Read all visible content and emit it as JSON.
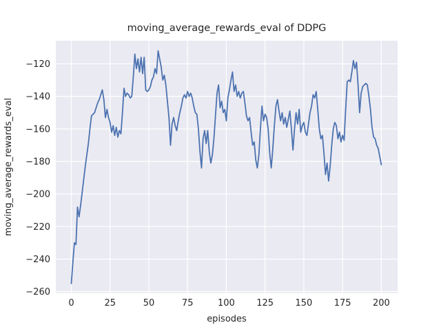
{
  "title": "moving_average_rewards_eval of DDPG",
  "colors": {
    "line": "#4c72b0",
    "plot_background": "#eaeaf2",
    "grid": "#ffffff",
    "text": "#262626",
    "figure_background": "#ffffff"
  },
  "chart_data": {
    "type": "line",
    "title": "moving_average_rewards_eval of DDPG",
    "xlabel": "episodes",
    "ylabel": "moving_average_rewards_eval",
    "xlim": [
      -10,
      210.5
    ],
    "ylim": [
      -261,
      -105.8
    ],
    "xticks": [
      0,
      25,
      50,
      75,
      100,
      125,
      150,
      175,
      200
    ],
    "yticks": [
      -260,
      -240,
      -220,
      -200,
      -180,
      -160,
      -140,
      -120
    ],
    "grid": true,
    "legend_position": "none",
    "x_start": 0,
    "x_step": 1,
    "series": [
      {
        "name": "moving_average_rewards_eval",
        "color": "#4c72b0",
        "values": [
          -255,
          -242,
          -230,
          -231,
          -208,
          -214,
          -207,
          -199,
          -191,
          -183,
          -176,
          -169,
          -160,
          -152,
          -151,
          -150,
          -147,
          -144,
          -142,
          -139,
          -136,
          -142,
          -153,
          -148,
          -153,
          -156,
          -162,
          -158,
          -164,
          -159,
          -165,
          -161,
          -163,
          -150,
          -135,
          -140,
          -138,
          -139,
          -141,
          -140,
          -128,
          -114,
          -123,
          -117,
          -125,
          -116,
          -126,
          -116,
          -136,
          -137,
          -136,
          -134,
          -130,
          -128,
          -123,
          -126,
          -112,
          -117,
          -122,
          -130,
          -127,
          -133,
          -143,
          -153,
          -170,
          -157,
          -153,
          -158,
          -161,
          -155,
          -150,
          -146,
          -141,
          -139,
          -141,
          -137,
          -140,
          -138,
          -141,
          -146,
          -150,
          -151,
          -160,
          -174,
          -184,
          -166,
          -161,
          -169,
          -161,
          -174,
          -181,
          -176,
          -166,
          -152,
          -138,
          -133,
          -147,
          -143,
          -150,
          -148,
          -155,
          -141,
          -136,
          -130,
          -125,
          -137,
          -133,
          -140,
          -137,
          -141,
          -138,
          -137,
          -144,
          -152,
          -155,
          -153,
          -162,
          -170,
          -168,
          -179,
          -184,
          -176,
          -160,
          -146,
          -155,
          -151,
          -153,
          -160,
          -175,
          -184,
          -172,
          -158,
          -146,
          -142,
          -149,
          -155,
          -150,
          -157,
          -153,
          -159,
          -154,
          -149,
          -160,
          -173,
          -160,
          -150,
          -157,
          -148,
          -162,
          -158,
          -156,
          -162,
          -164,
          -157,
          -150,
          -146,
          -139,
          -141,
          -137,
          -148,
          -160,
          -166,
          -164,
          -175,
          -188,
          -181,
          -192,
          -183,
          -170,
          -160,
          -156,
          -158,
          -166,
          -162,
          -168,
          -164,
          -167,
          -148,
          -131,
          -130,
          -131,
          -125,
          -118,
          -123,
          -119,
          -133,
          -150,
          -138,
          -134,
          -133,
          -132,
          -133,
          -140,
          -148,
          -159,
          -165,
          -166,
          -170,
          -172,
          -177,
          -182
        ]
      }
    ]
  }
}
